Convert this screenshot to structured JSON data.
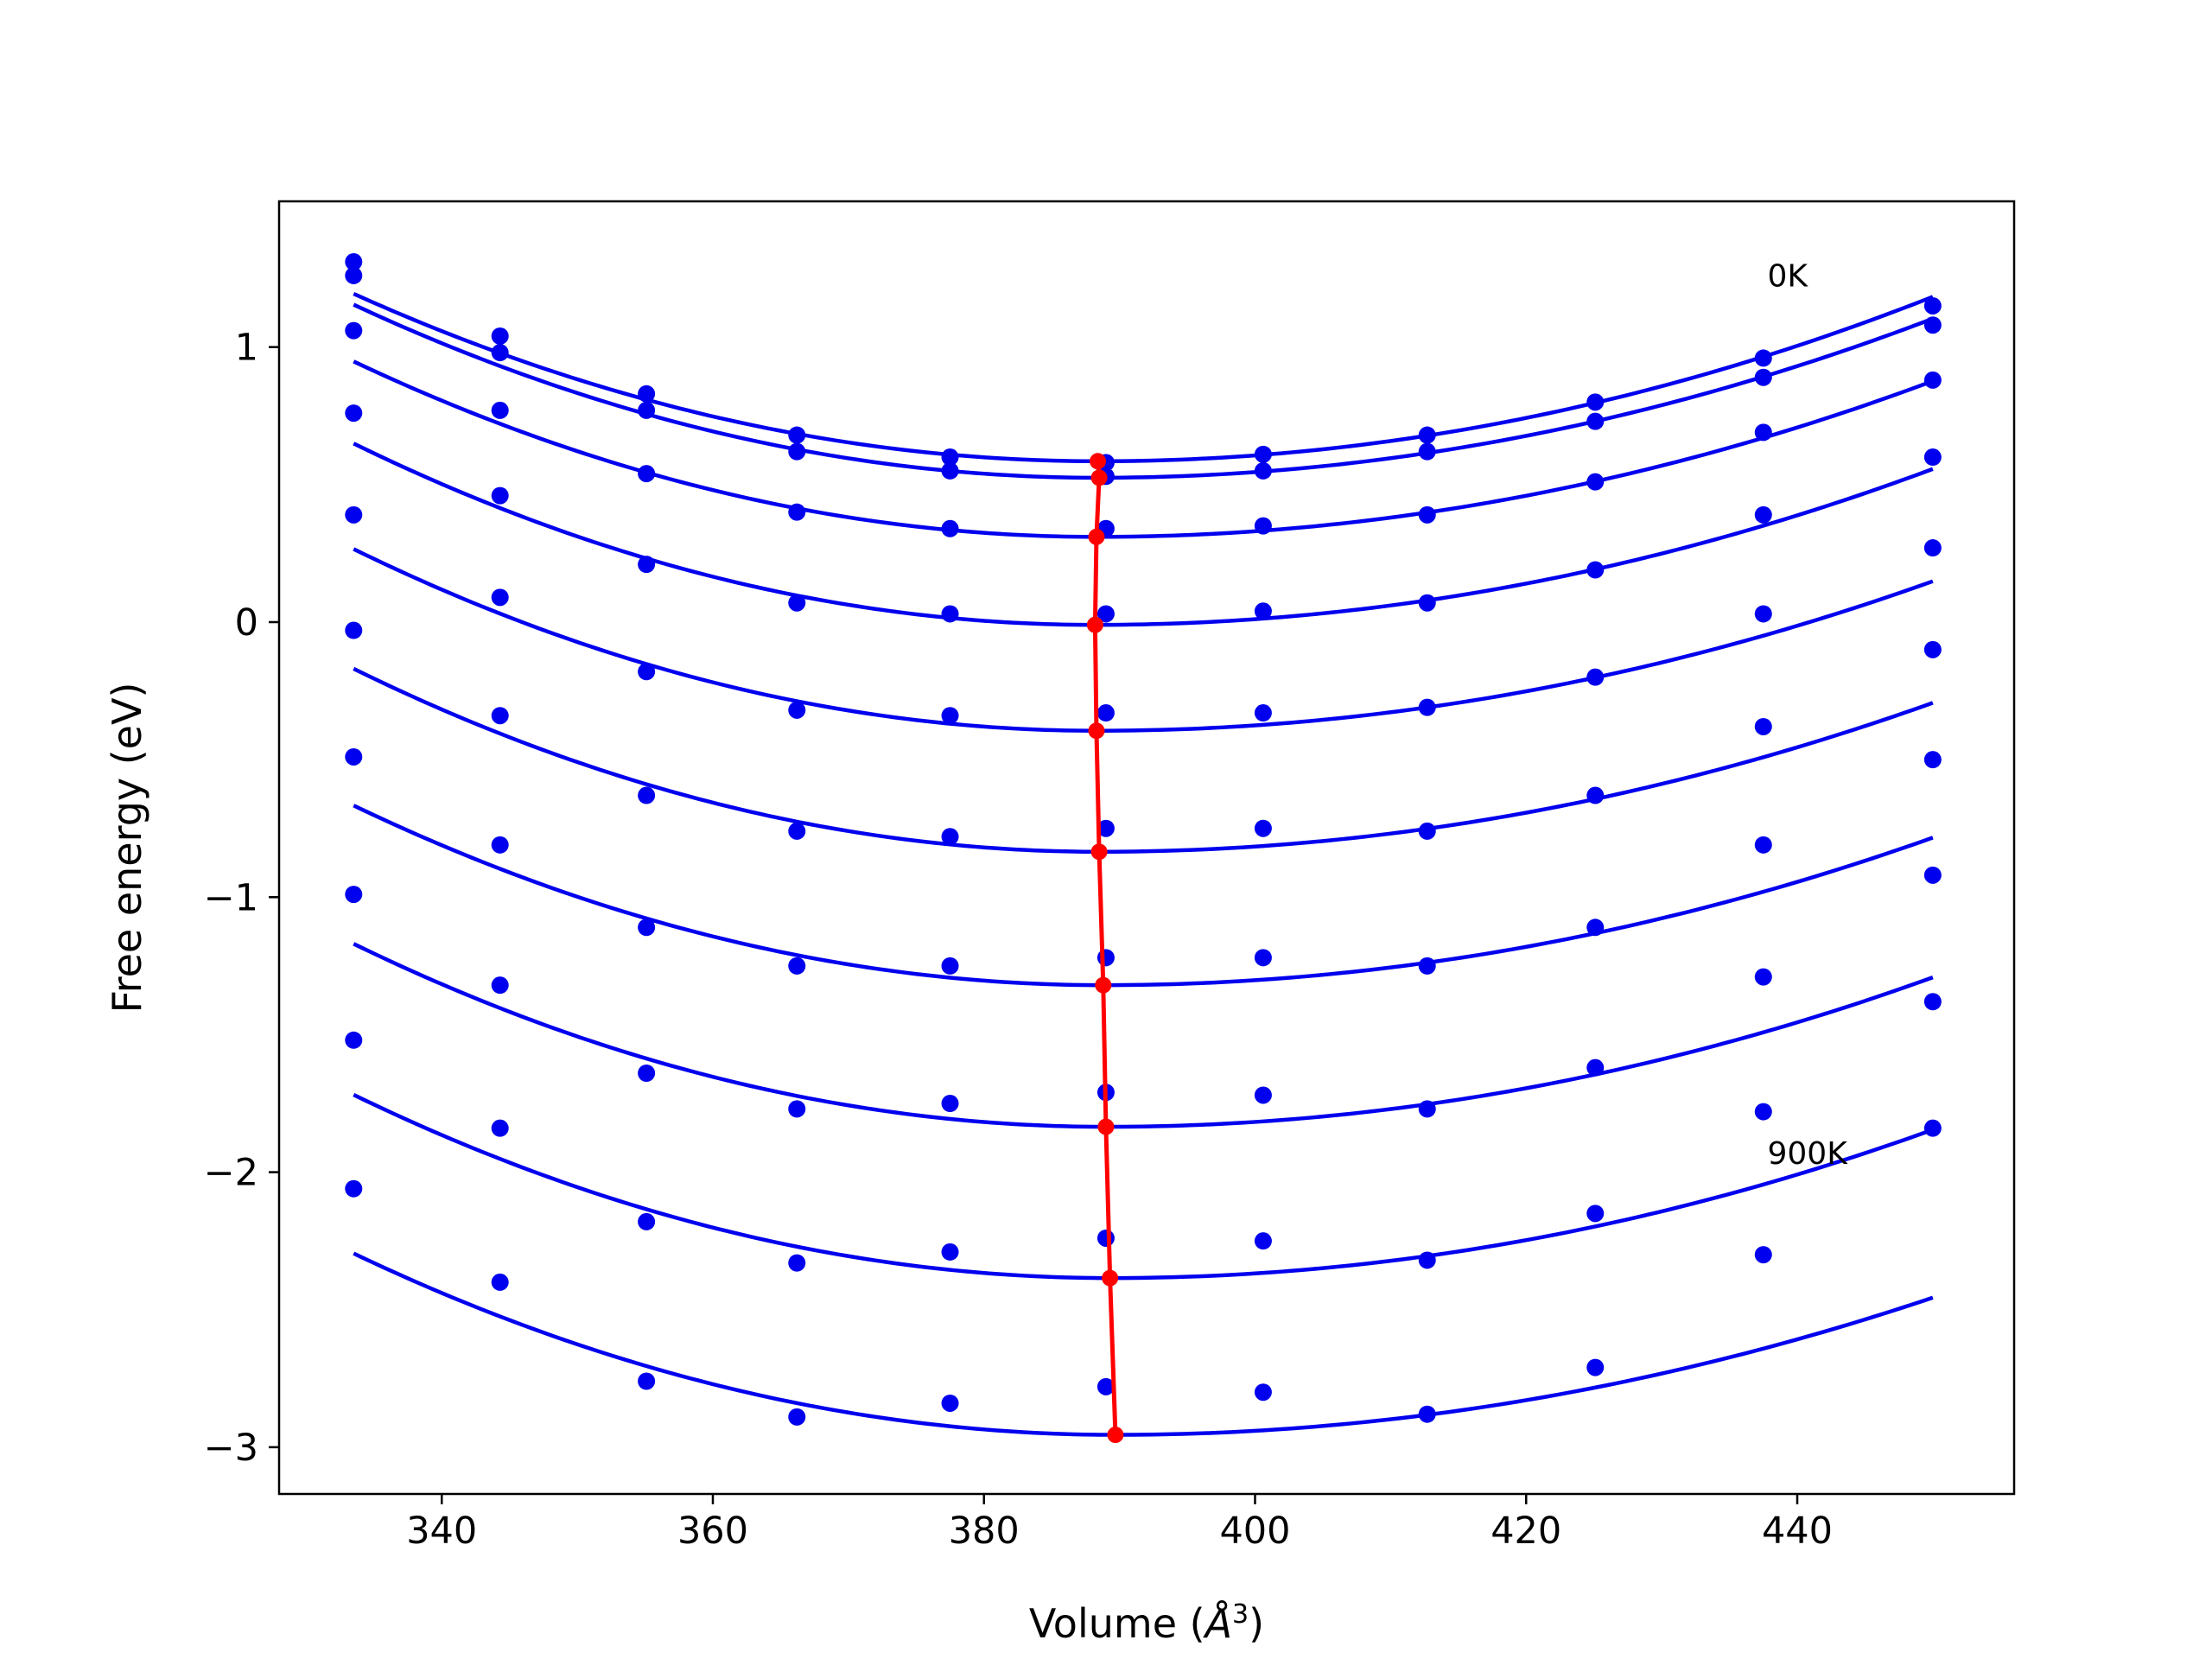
{
  "chart_data": {
    "type": "scatter",
    "title": "",
    "xlabel": "Volume (Å³)",
    "xlabel_base": "Volume (",
    "xlabel_symbol": "Å",
    "xlabel_sup": "3",
    "xlabel_close": ")",
    "ylabel": "Free energy (eV)",
    "xlim": [
      328,
      456
    ],
    "ylim": [
      -3.17,
      1.53
    ],
    "xticks": [
      340,
      360,
      380,
      400,
      420,
      440
    ],
    "xtick_labels": [
      "340",
      "360",
      "380",
      "400",
      "420",
      "440"
    ],
    "yticks": [
      1,
      0,
      -1,
      -2,
      -3
    ],
    "ytick_labels": [
      "1",
      "0",
      "−1",
      "−2",
      "−3"
    ],
    "grid": false,
    "legend": "none",
    "annotations": [
      {
        "text": "0K",
        "x": 437.8,
        "y": 1.22
      },
      {
        "text": "900K",
        "x": 437.8,
        "y": -1.97
      }
    ],
    "x": [
      333.5,
      344.3,
      355.1,
      366.2,
      377.5,
      389.0,
      400.6,
      412.7,
      425.1,
      437.5,
      450.0
    ],
    "series": [
      {
        "values": [
          1.31,
          1.04,
          0.83,
          0.68,
          0.6,
          0.58,
          0.61,
          0.68,
          0.8,
          0.96,
          1.15
        ],
        "fit": {
          "vmin": 388.4,
          "fmin": 0.585,
          "a_left": 5.05e-05,
          "a_right": 3.94e-05
        },
        "min": {
          "x": 388.4,
          "y": 0.585
        }
      },
      {
        "values": [
          1.26,
          0.98,
          0.77,
          0.62,
          0.55,
          0.53,
          0.55,
          0.62,
          0.73,
          0.89,
          1.08
        ],
        "fit": {
          "vmin": 388.4,
          "fmin": 0.525,
          "a_left": 5.22e-05,
          "a_right": 3.81e-05
        },
        "min": {
          "x": 388.5,
          "y": 0.525
        }
      },
      {
        "values": [
          1.06,
          0.77,
          0.54,
          0.4,
          0.34,
          0.34,
          0.35,
          0.39,
          0.51,
          0.69,
          0.88
        ],
        "fit": {
          "vmin": 388.3,
          "fmin": 0.31,
          "a_left": 5.31e-05,
          "a_right": 3.72e-05
        },
        "min": {
          "x": 388.3,
          "y": 0.31
        }
      },
      {
        "values": [
          0.76,
          0.46,
          0.21,
          0.07,
          0.03,
          0.03,
          0.04,
          0.07,
          0.19,
          0.39,
          0.6
        ],
        "fit": {
          "vmin": 388.2,
          "fmin": -0.01,
          "a_left": 5.51e-05,
          "a_right": 3.71e-05
        },
        "min": {
          "x": 388.2,
          "y": -0.01
        }
      },
      {
        "values": [
          0.39,
          0.09,
          -0.18,
          -0.32,
          -0.34,
          -0.33,
          -0.33,
          -0.31,
          -0.2,
          0.03,
          0.27
        ],
        "fit": {
          "vmin": 388.3,
          "fmin": -0.395,
          "a_left": 5.5e-05,
          "a_right": 3.57e-05
        },
        "min": {
          "x": 388.3,
          "y": -0.395
        }
      },
      {
        "values": [
          -0.03,
          -0.34,
          -0.63,
          -0.76,
          -0.78,
          -0.75,
          -0.75,
          -0.76,
          -0.63,
          -0.38,
          -0.1
        ],
        "fit": {
          "vmin": 388.5,
          "fmin": -0.835,
          "a_left": 5.5e-05,
          "a_right": 3.58e-05
        },
        "min": {
          "x": 388.5,
          "y": -0.835
        }
      },
      {
        "values": [
          -0.49,
          -0.81,
          -1.11,
          -1.25,
          -1.25,
          -1.22,
          -1.22,
          -1.25,
          -1.11,
          -0.81,
          -0.5
        ],
        "fit": {
          "vmin": 388.8,
          "fmin": -1.32,
          "a_left": 5.34e-05,
          "a_right": 3.58e-05
        },
        "min": {
          "x": 388.8,
          "y": -1.32
        }
      },
      {
        "values": [
          -0.99,
          -1.32,
          -1.64,
          -1.77,
          -1.75,
          -1.71,
          -1.72,
          -1.77,
          -1.62,
          -1.29,
          -0.92
        ],
        "fit": {
          "vmin": 389.0,
          "fmin": -1.835,
          "a_left": 5.4e-05,
          "a_right": 3.65e-05
        },
        "min": {
          "x": 389.0,
          "y": -1.835
        }
      },
      {
        "values": [
          -1.52,
          -1.84,
          -2.18,
          -2.33,
          -2.29,
          -2.24,
          -2.25,
          -2.32,
          -2.15,
          -1.78,
          -1.38
        ],
        "fit": {
          "vmin": 389.3,
          "fmin": -2.385,
          "a_left": 5.35e-05,
          "a_right": 3.66e-05
        },
        "min": {
          "x": 389.3,
          "y": -2.385
        }
      },
      {
        "values": [
          -2.06,
          -2.4,
          -2.76,
          -2.89,
          -2.84,
          -2.78,
          -2.8,
          -2.88,
          -2.71,
          -2.3,
          -1.84
        ],
        "fit": {
          "vmin": 389.7,
          "fmin": -2.955,
          "a_left": 5.22e-05,
          "a_right": 3.43e-05
        },
        "min": {
          "x": 389.7,
          "y": -2.955
        }
      }
    ],
    "min_line": {
      "x": [
        388.4,
        388.5,
        388.3,
        388.2,
        388.3,
        388.5,
        388.8,
        389.0,
        389.3,
        389.7
      ],
      "y": [
        0.585,
        0.525,
        0.31,
        -0.01,
        -0.395,
        -0.835,
        -1.32,
        -1.835,
        -2.385,
        -2.955
      ]
    },
    "colors": {
      "data": "#0000ee",
      "fit": "#0000ee",
      "min_line": "#ff0000",
      "axes": "#000000"
    }
  }
}
